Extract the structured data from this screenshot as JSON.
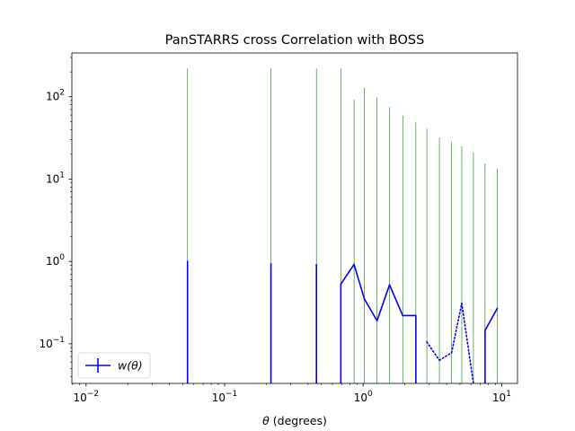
{
  "chart_data": {
    "type": "line",
    "title": "PanSTARRS cross Correlation with BOSS",
    "xlabel": "θ (degrees)",
    "ylabel": "",
    "xscale": "log",
    "yscale": "log",
    "xlim": [
      0.0079,
      13.0
    ],
    "ylim": [
      0.033,
      340
    ],
    "x_ticks": [
      {
        "value": 0.01,
        "base": "10",
        "exp": "−2"
      },
      {
        "value": 0.1,
        "base": "10",
        "exp": "−1"
      },
      {
        "value": 1,
        "base": "10",
        "exp": "0"
      },
      {
        "value": 10,
        "base": "10",
        "exp": "1"
      }
    ],
    "y_ticks": [
      {
        "value": 0.1,
        "base": "10",
        "exp": "−1"
      },
      {
        "value": 1,
        "base": "10",
        "exp": "0"
      },
      {
        "value": 10,
        "base": "10",
        "exp": "1"
      },
      {
        "value": 100,
        "base": "10",
        "exp": "2"
      }
    ],
    "legend": {
      "position": "lower-left",
      "label": "w(θ)"
    },
    "series": [
      {
        "name": "w(θ)",
        "color": "#0000ff",
        "x": [
          0.054,
          0.216,
          0.46,
          0.69,
          0.86,
          1.02,
          1.26,
          1.55,
          1.93,
          2.4,
          2.88,
          3.55,
          4.35,
          5.15,
          6.25,
          7.58,
          9.3
        ],
        "y": [
          1.02,
          0.95,
          0.93,
          0.53,
          0.92,
          0.35,
          0.19,
          0.52,
          0.22,
          0.22,
          0.105,
          0.063,
          0.078,
          0.31,
          0.032,
          0.145,
          0.27
        ],
        "solid_segments": [
          [
            3,
            4
          ],
          [
            4,
            5
          ],
          [
            5,
            6
          ],
          [
            6,
            7
          ],
          [
            7,
            8
          ],
          [
            8,
            9
          ],
          [
            15,
            16
          ]
        ],
        "dotted_segments": [
          [
            10,
            11
          ],
          [
            11,
            12
          ],
          [
            12,
            13
          ],
          [
            13,
            14
          ]
        ],
        "error_bars": [
          {
            "x": 0.054,
            "lower": 0.001,
            "upper": 220,
            "drop_below_axis": true
          },
          {
            "x": 0.216,
            "lower": 0.001,
            "upper": 220,
            "drop_below_axis": true
          },
          {
            "x": 0.46,
            "lower": 0.001,
            "upper": 220,
            "drop_below_axis": true
          },
          {
            "x": 0.69,
            "lower": 0.001,
            "upper": 220,
            "drop_below_axis": true
          },
          {
            "x": 0.86,
            "lower": 0.001,
            "upper": 92
          },
          {
            "x": 1.02,
            "lower": 0.001,
            "upper": 128
          },
          {
            "x": 1.26,
            "lower": 0.001,
            "upper": 98
          },
          {
            "x": 1.55,
            "lower": 0.001,
            "upper": 75
          },
          {
            "x": 1.93,
            "lower": 0.001,
            "upper": 59
          },
          {
            "x": 2.4,
            "lower": 0.001,
            "upper": 49,
            "drop_below_axis": true
          },
          {
            "x": 2.88,
            "lower": 0.001,
            "upper": 41
          },
          {
            "x": 3.55,
            "lower": 0.001,
            "upper": 32
          },
          {
            "x": 4.35,
            "lower": 0.001,
            "upper": 28
          },
          {
            "x": 5.15,
            "lower": 0.001,
            "upper": 25
          },
          {
            "x": 6.25,
            "lower": 0.001,
            "upper": 21
          },
          {
            "x": 7.58,
            "lower": 0.001,
            "upper": 15.5,
            "drop_below_axis": true
          },
          {
            "x": 9.3,
            "lower": 0.001,
            "upper": 13.5
          }
        ]
      }
    ],
    "errorbar_color": "#008000",
    "grid": false
  }
}
